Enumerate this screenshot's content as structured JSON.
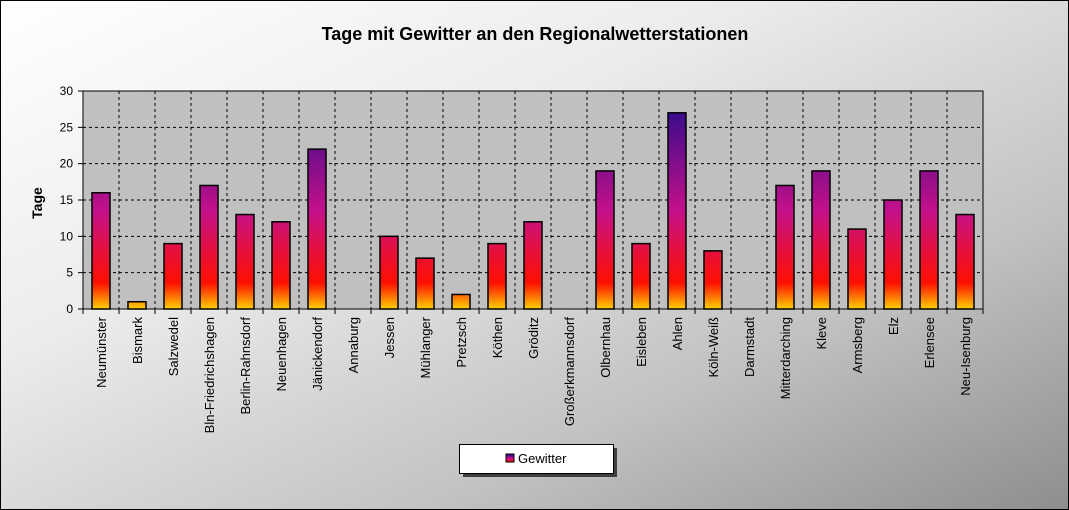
{
  "colors": {
    "bar_top": "#1c0a8c",
    "bar_mid": "#c4108a",
    "bar_bottom": "#ff1000",
    "bar_base": "#ffd000",
    "outline": "#000000"
  },
  "chart_data": {
    "type": "bar",
    "title": "Tage mit Gewitter  an den Regionalwetterstationen",
    "xlabel": "",
    "ylabel": "Tage",
    "ylim": [
      0,
      30
    ],
    "yticks": [
      "0",
      "5",
      "10",
      "15",
      "20",
      "25",
      "30"
    ],
    "grid": true,
    "legend_position": "bottom-center",
    "categories": [
      "Neumünster",
      "Bismark",
      "Salzwedel",
      "Bln-Friedrichshagen",
      "Berlin-Rahnsdorf",
      "Neuenhagen",
      "Jänickendorf",
      "Annaburg",
      "Jessen",
      "Mühlanger",
      "Pretzsch",
      "Köthen",
      "Gröditz",
      "Großerkmannsdorf",
      "Olbernhau",
      "Eisleben",
      "Ahlen",
      "Köln-Weiß",
      "Darmstadt",
      "Mitterdarching",
      "Kleve",
      "Armsberg",
      "Elz",
      "Erlensee",
      "Neu-Isenburg"
    ],
    "series": [
      {
        "name": "Gewitter",
        "values": [
          16,
          1,
          9,
          17,
          13,
          12,
          22,
          0,
          10,
          7,
          2,
          9,
          12,
          0,
          19,
          9,
          27,
          8,
          0,
          17,
          19,
          11,
          15,
          19,
          13
        ]
      }
    ]
  }
}
